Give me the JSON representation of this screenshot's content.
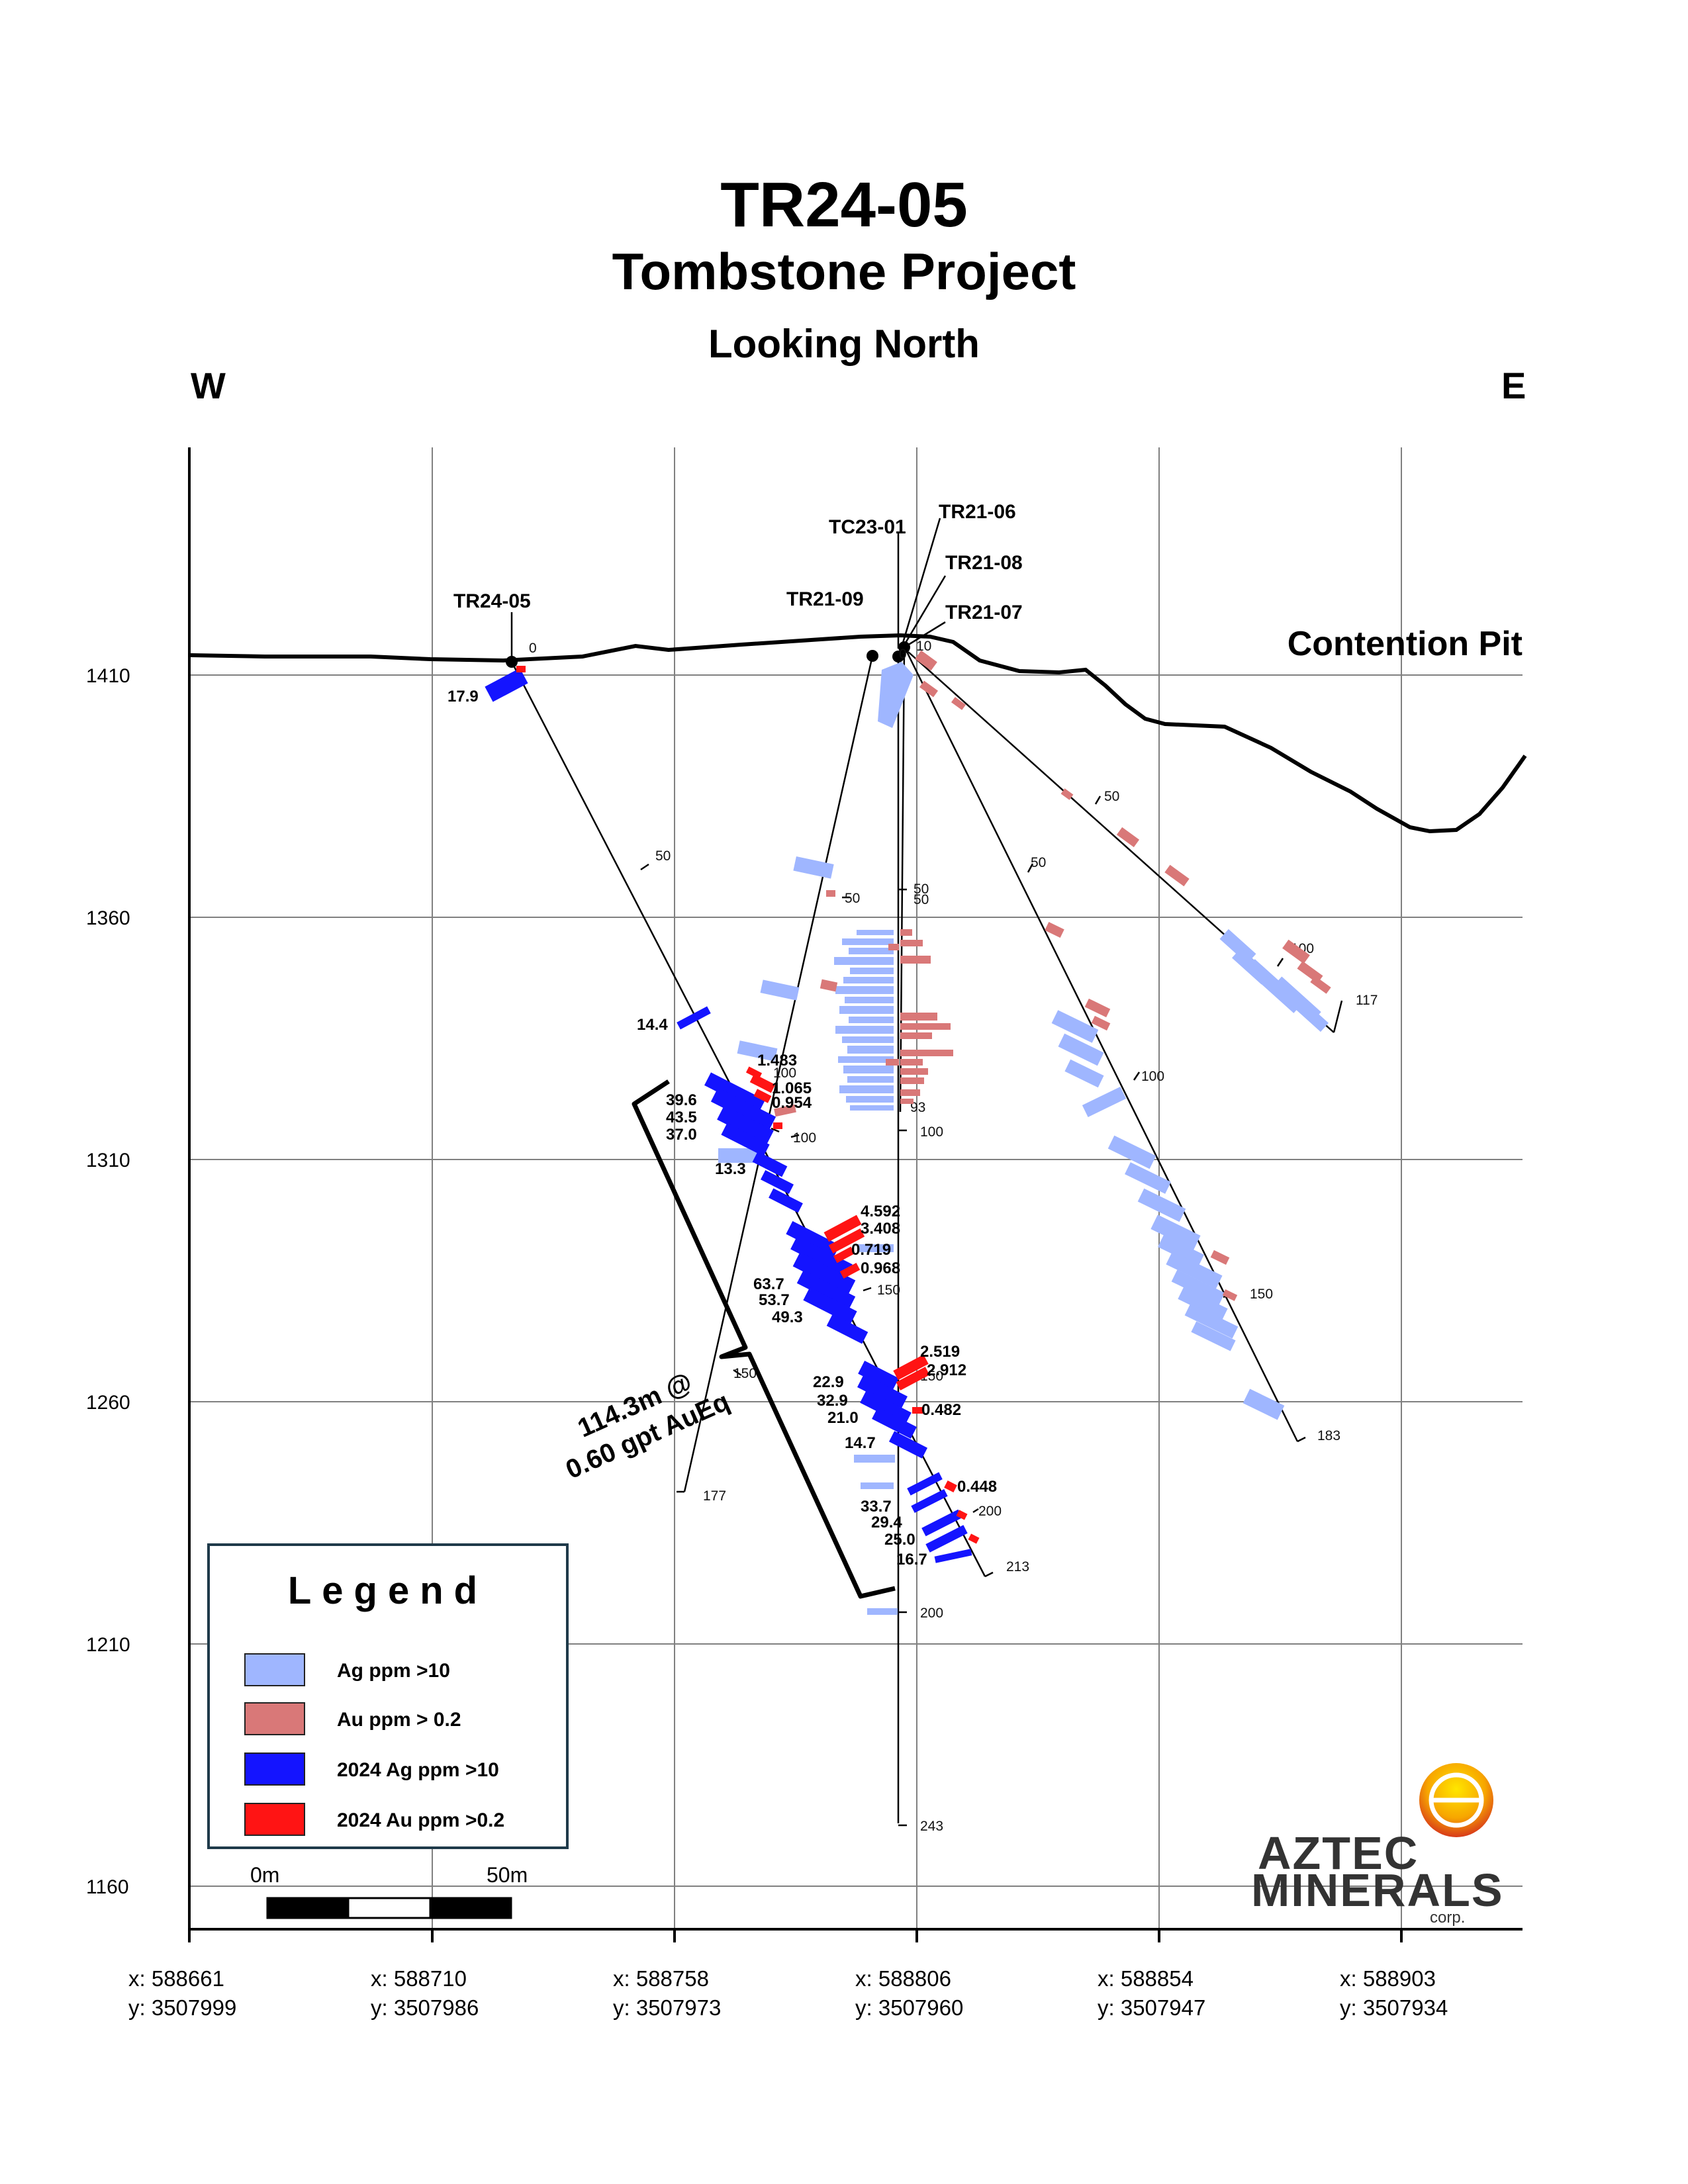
{
  "header": {
    "title": "TR24-05",
    "project": "Tombstone Project",
    "view": "Looking North",
    "west": "W",
    "east": "E"
  },
  "pit_label": "Contention Pit",
  "elevation_ticks": [
    "1410",
    "1360",
    "1310",
    "1260",
    "1210",
    "1160"
  ],
  "easting_ticks": [
    {
      "x": "x: 588661",
      "y": "y: 3507999"
    },
    {
      "x": "x: 588710",
      "y": "y: 3507986"
    },
    {
      "x": "x: 588758",
      "y": "y: 3507973"
    },
    {
      "x": "x: 588806",
      "y": "y: 3507960"
    },
    {
      "x": "x: 588854",
      "y": "y: 3507947"
    },
    {
      "x": "x: 588903",
      "y": "y: 3507934"
    }
  ],
  "holes": {
    "tr24_05": "TR24-05",
    "tc23_01": "TC23-01",
    "tr21_06": "TR21-06",
    "tr21_08": "TR21-08",
    "tr21_09": "TR21-09",
    "tr21_07": "TR21-07"
  },
  "depth_labels": {
    "d0": "0",
    "d10": "10",
    "d0b": "0",
    "h50a": "50",
    "h50b": "50",
    "h50c": "50",
    "h50d": "50",
    "h50e": "50",
    "h50f": "50",
    "h100a": "100",
    "h100b": "100",
    "h100c": "100",
    "h100d": "100",
    "h100e": "100",
    "h93": "93",
    "h117": "117",
    "h150a": "150",
    "h150b": "150",
    "h150c": "150",
    "h150d": "150",
    "h177": "177",
    "h183": "183",
    "h200a": "200",
    "h200b": "200",
    "h213": "213",
    "h243": "243"
  },
  "assay_labels": {
    "ag_17_9": "17.9",
    "ag_14_4": "14.4",
    "au_1_483": "1.483",
    "ag_39_6": "39.6",
    "au_1_065": "1.065",
    "ag_43_5": "43.5",
    "au_0_954": "0.954",
    "ag_37_0": "37.0",
    "ag_13_3": "13.3",
    "au_4_592": "4.592",
    "au_3_408": "3.408",
    "au_0_719": "0.719",
    "au_0_968": "0.968",
    "ag_63_7": "63.7",
    "ag_53_7": "53.7",
    "ag_49_3": "49.3",
    "au_2_519": "2.519",
    "au_2_912": "2.912",
    "ag_22_9": "22.9",
    "ag_32_9": "32.9",
    "au_0_482": "0.482",
    "ag_21_0": "21.0",
    "ag_14_7": "14.7",
    "au_0_448": "0.448",
    "ag_33_7": "33.7",
    "ag_29_4": "29.4",
    "ag_25_0": "25.0",
    "ag_16_7": "16.7"
  },
  "intercept": {
    "line1": "114.3m @",
    "line2": "0.60 gpt AuEq"
  },
  "legend": {
    "title": "Legend",
    "items": [
      {
        "label": "Ag ppm >10",
        "color": "#9fb6ff"
      },
      {
        "label": "Au ppm > 0.2",
        "color": "#d97878"
      },
      {
        "label": "2024 Ag ppm >10",
        "color": "#1414ff"
      },
      {
        "label": "2024 Au ppm >0.2",
        "color": "#ff1414"
      }
    ]
  },
  "scale_bar": {
    "start": "0m",
    "end": "50m"
  },
  "logo": {
    "line1": "AZTEC",
    "line2": "MINERALS",
    "suffix": "corp."
  }
}
